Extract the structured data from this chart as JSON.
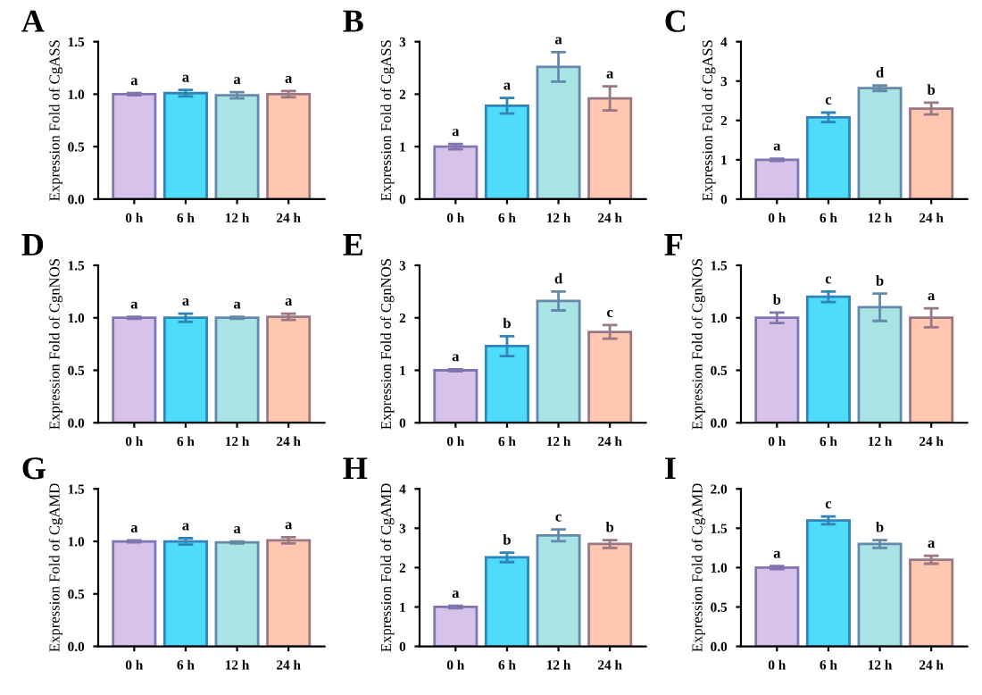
{
  "chart_data": [
    {
      "type": "bar",
      "title": "A",
      "ylabel": "Expression Fold of CgASS",
      "categories": [
        "0 h",
        "6 h",
        "12 h",
        "24 h"
      ],
      "values": [
        1.0,
        1.01,
        0.99,
        1.0
      ],
      "errors": [
        0.01,
        0.03,
        0.03,
        0.03
      ],
      "colors": [
        "#d7c3ea",
        "#4fdcfa",
        "#a8e4e4",
        "#ffc7b0"
      ],
      "ylim": [
        0,
        1.5
      ],
      "yticks": [
        {
          "value": 0,
          "label": "0.0"
        },
        {
          "value": 0.5,
          "label": "0.5"
        },
        {
          "value": 1,
          "label": "1.0"
        },
        {
          "value": 1.5,
          "label": "1.5"
        }
      ],
      "annotations": [
        {
          "text": "a",
          "x": "0 h",
          "y": 1.0
        },
        {
          "text": "a",
          "x": "6 h",
          "y": 1.01
        },
        {
          "text": "a",
          "x": "12 h",
          "y": 0.99
        },
        {
          "text": "a",
          "x": "24 h",
          "y": 1.0
        }
      ]
    },
    {
      "type": "bar",
      "title": "B",
      "ylabel": "Expression Fold of CgASS",
      "categories": [
        "0 h",
        "6 h",
        "12 h",
        "24 h"
      ],
      "values": [
        1.0,
        1.78,
        2.52,
        1.92
      ],
      "errors": [
        0.05,
        0.15,
        0.28,
        0.23
      ],
      "colors": [
        "#d7c3ea",
        "#4fdcfa",
        "#a8e4e4",
        "#ffc7b0"
      ],
      "ylim": [
        0,
        3
      ],
      "yticks": [
        0,
        1,
        2,
        3
      ],
      "annotations": [
        {
          "text": "a",
          "x": "0 h",
          "y": 1.0
        },
        {
          "text": "a",
          "x": "6 h",
          "y": 1.78
        },
        {
          "text": "a",
          "x": "12 h",
          "y": 2.52
        },
        {
          "text": "a",
          "x": "24 h",
          "y": 1.92
        }
      ]
    },
    {
      "type": "bar",
      "title": "C",
      "ylabel": "Expression Fold of CgASS",
      "categories": [
        "0 h",
        "6 h",
        "12 h",
        "24 h"
      ],
      "values": [
        1.0,
        2.08,
        2.82,
        2.3
      ],
      "errors": [
        0.03,
        0.12,
        0.07,
        0.15
      ],
      "colors": [
        "#d7c3ea",
        "#4fdcfa",
        "#a8e4e4",
        "#ffc7b0"
      ],
      "ylim": [
        0,
        4
      ],
      "yticks": [
        0,
        1,
        2,
        3,
        4
      ],
      "annotations": [
        {
          "text": "a",
          "x": "0 h",
          "y": 1.0
        },
        {
          "text": "c",
          "x": "6 h",
          "y": 2.08
        },
        {
          "text": "d",
          "x": "12 h",
          "y": 2.82
        },
        {
          "text": "b",
          "x": "24 h",
          "y": 2.3
        }
      ]
    },
    {
      "type": "bar",
      "title": "D",
      "ylabel": "Expression Fold of CgnNOS",
      "categories": [
        "0 h",
        "6 h",
        "12 h",
        "24 h"
      ],
      "values": [
        1.0,
        1.0,
        1.0,
        1.01
      ],
      "errors": [
        0.01,
        0.04,
        0.01,
        0.03
      ],
      "colors": [
        "#d7c3ea",
        "#4fdcfa",
        "#a8e4e4",
        "#ffc7b0"
      ],
      "ylim": [
        0,
        1.5
      ],
      "yticks": [
        {
          "value": 0,
          "label": "0.0"
        },
        {
          "value": 0.5,
          "label": "0.5"
        },
        {
          "value": 1,
          "label": "1.0"
        },
        {
          "value": 1.5,
          "label": "1.5"
        }
      ],
      "annotations": [
        {
          "text": "a",
          "x": "0 h",
          "y": 1.0
        },
        {
          "text": "a",
          "x": "6 h",
          "y": 1.0
        },
        {
          "text": "a",
          "x": "12 h",
          "y": 1.0
        },
        {
          "text": "a",
          "x": "24 h",
          "y": 1.01
        }
      ]
    },
    {
      "type": "bar",
      "title": "E",
      "ylabel": "Expression Fold of CgnNOS",
      "categories": [
        "0 h",
        "6 h",
        "12 h",
        "24 h"
      ],
      "values": [
        1.0,
        1.46,
        2.32,
        1.73
      ],
      "errors": [
        0.02,
        0.19,
        0.18,
        0.13
      ],
      "colors": [
        "#d7c3ea",
        "#4fdcfa",
        "#a8e4e4",
        "#ffc7b0"
      ],
      "ylim": [
        0,
        3
      ],
      "yticks": [
        0,
        1,
        2,
        3
      ],
      "annotations": [
        {
          "text": "a",
          "x": "0 h",
          "y": 1.0
        },
        {
          "text": "b",
          "x": "6 h",
          "y": 1.46
        },
        {
          "text": "d",
          "x": "12 h",
          "y": 2.32
        },
        {
          "text": "c",
          "x": "24 h",
          "y": 1.73
        }
      ]
    },
    {
      "type": "bar",
      "title": "F",
      "ylabel": "Expression Fold of CgnNOS",
      "categories": [
        "0 h",
        "6 h",
        "12 h",
        "24 h"
      ],
      "values": [
        1.0,
        1.2,
        1.1,
        1.0
      ],
      "errors": [
        0.05,
        0.05,
        0.13,
        0.09
      ],
      "colors": [
        "#d7c3ea",
        "#4fdcfa",
        "#a8e4e4",
        "#ffc7b0"
      ],
      "ylim": [
        0,
        1.5
      ],
      "yticks": [
        {
          "value": 0,
          "label": "0.0"
        },
        {
          "value": 0.5,
          "label": "0.5"
        },
        {
          "value": 1,
          "label": "1.0"
        },
        {
          "value": 1.5,
          "label": "1.5"
        }
      ],
      "annotations": [
        {
          "text": "b",
          "x": "0 h",
          "y": 1.0
        },
        {
          "text": "c",
          "x": "6 h",
          "y": 1.2
        },
        {
          "text": "b",
          "x": "12 h",
          "y": 1.1
        },
        {
          "text": "a",
          "x": "24 h",
          "y": 1.0
        }
      ]
    },
    {
      "type": "bar",
      "title": "G",
      "ylabel": "Expression Fold of CgAMD",
      "categories": [
        "0 h",
        "6 h",
        "12 h",
        "24 h"
      ],
      "values": [
        1.0,
        1.0,
        0.99,
        1.01
      ],
      "errors": [
        0.01,
        0.03,
        0.01,
        0.03
      ],
      "colors": [
        "#d7c3ea",
        "#4fdcfa",
        "#a8e4e4",
        "#ffc7b0"
      ],
      "ylim": [
        0,
        1.5
      ],
      "yticks": [
        {
          "value": 0,
          "label": "0.0"
        },
        {
          "value": 0.5,
          "label": "0.5"
        },
        {
          "value": 1,
          "label": "1.0"
        },
        {
          "value": 1.5,
          "label": "1.5"
        }
      ],
      "annotations": [
        {
          "text": "a",
          "x": "0 h",
          "y": 1.0
        },
        {
          "text": "a",
          "x": "6 h",
          "y": 1.0
        },
        {
          "text": "a",
          "x": "12 h",
          "y": 0.99
        },
        {
          "text": "a",
          "x": "24 h",
          "y": 1.01
        }
      ]
    },
    {
      "type": "bar",
      "title": "H",
      "ylabel": "Expression Fold of CgAMD",
      "categories": [
        "0 h",
        "6 h",
        "12 h",
        "24 h"
      ],
      "values": [
        1.0,
        2.26,
        2.82,
        2.6
      ],
      "errors": [
        0.03,
        0.12,
        0.15,
        0.1
      ],
      "colors": [
        "#d7c3ea",
        "#4fdcfa",
        "#a8e4e4",
        "#ffc7b0"
      ],
      "ylim": [
        0,
        4
      ],
      "yticks": [
        0,
        1,
        2,
        3,
        4
      ],
      "annotations": [
        {
          "text": "a",
          "x": "0 h",
          "y": 1.0
        },
        {
          "text": "b",
          "x": "6 h",
          "y": 2.26
        },
        {
          "text": "c",
          "x": "12 h",
          "y": 2.82
        },
        {
          "text": "b",
          "x": "24 h",
          "y": 2.6
        }
      ]
    },
    {
      "type": "bar",
      "title": "I",
      "ylabel": "Expression Fold of CgAMD",
      "categories": [
        "0 h",
        "6 h",
        "12 h",
        "24 h"
      ],
      "values": [
        1.0,
        1.6,
        1.3,
        1.1
      ],
      "errors": [
        0.02,
        0.05,
        0.05,
        0.05
      ],
      "colors": [
        "#d7c3ea",
        "#4fdcfa",
        "#a8e4e4",
        "#ffc7b0"
      ],
      "ylim": [
        0,
        2.0
      ],
      "yticks": [
        {
          "value": 0,
          "label": "0.0"
        },
        {
          "value": 0.5,
          "label": "0.5"
        },
        {
          "value": 1,
          "label": "1.0"
        },
        {
          "value": 1.5,
          "label": "1.5"
        },
        {
          "value": 2,
          "label": "2.0"
        }
      ],
      "annotations": [
        {
          "text": "a",
          "x": "0 h",
          "y": 1.0
        },
        {
          "text": "c",
          "x": "6 h",
          "y": 1.6
        },
        {
          "text": "b",
          "x": "12 h",
          "y": 1.3
        },
        {
          "text": "a",
          "x": "24 h",
          "y": 1.1
        }
      ]
    }
  ]
}
